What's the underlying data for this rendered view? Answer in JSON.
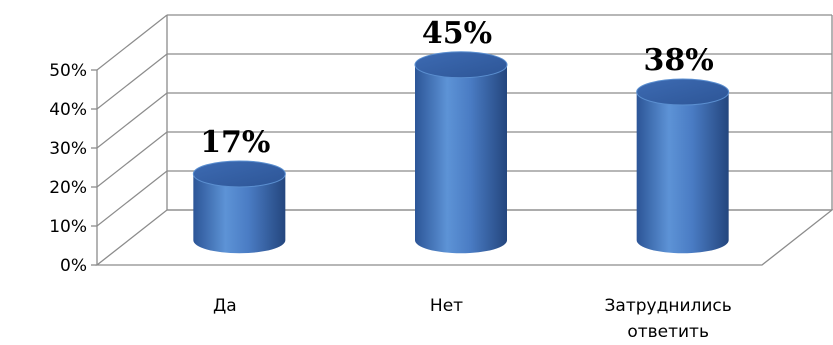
{
  "chart_data": {
    "type": "bar",
    "title": "",
    "xlabel": "",
    "ylabel": "",
    "categories": [
      "Да",
      "Нет",
      "Затруднились ответить"
    ],
    "category_lines": [
      [
        "Да"
      ],
      [
        "Нет"
      ],
      [
        "Затруднились",
        "ответить"
      ]
    ],
    "values": [
      17,
      45,
      38
    ],
    "data_labels": [
      "17%",
      "45%",
      "38%"
    ],
    "ylim": [
      0,
      50
    ],
    "yticks": [
      0,
      10,
      20,
      30,
      40,
      50
    ],
    "ytick_labels": [
      "0%",
      "10%",
      "20%",
      "30%",
      "40%",
      "50%"
    ],
    "grid": true,
    "style": "3d-cylinder",
    "bar_color": "#4a7cc4",
    "bar_top_color": "#3a64a6"
  }
}
